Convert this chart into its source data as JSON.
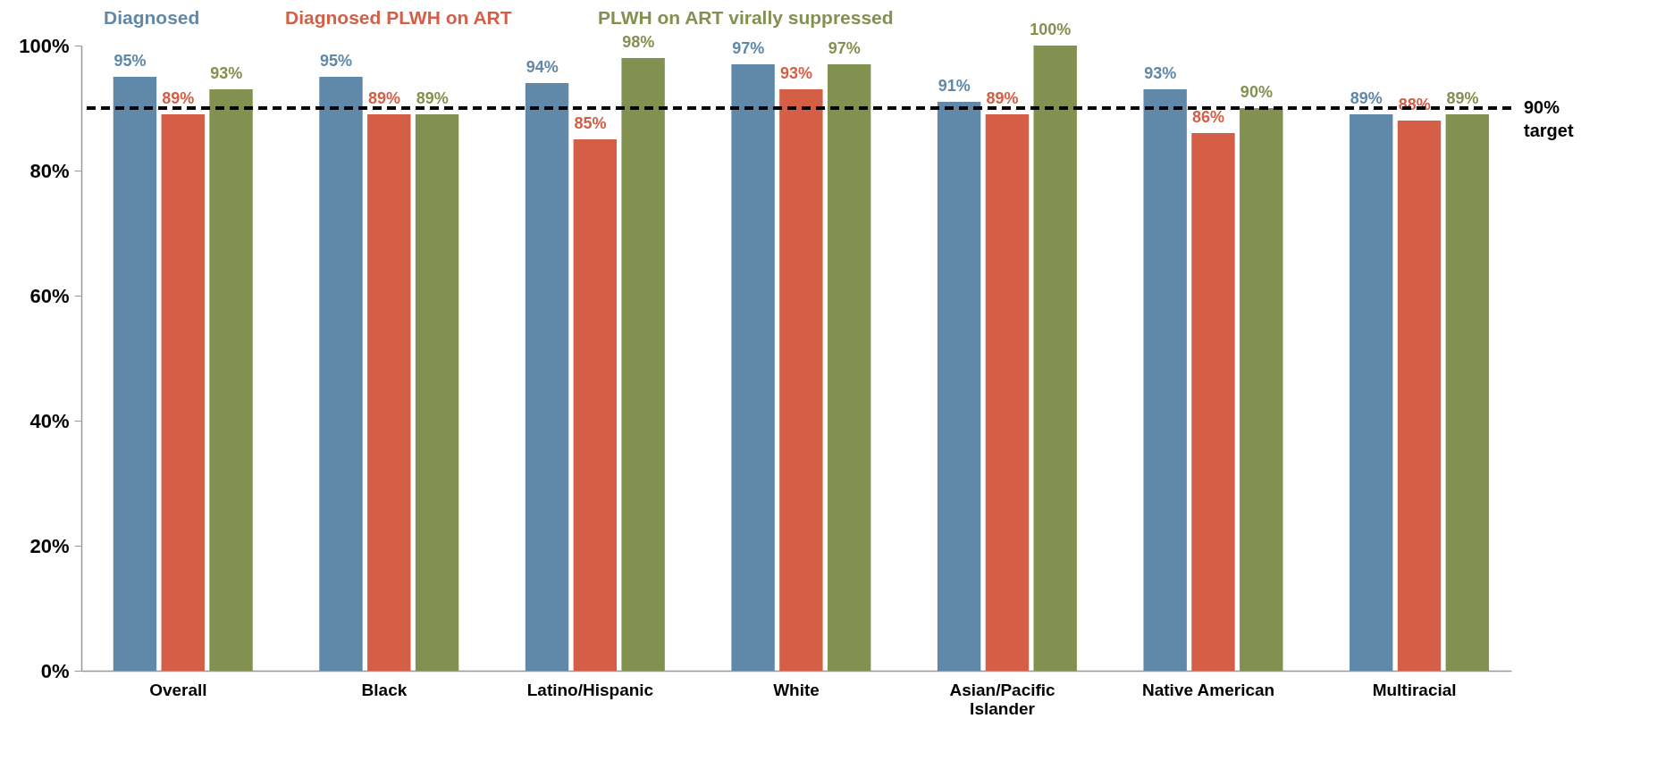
{
  "chart_data": {
    "type": "bar",
    "categories": [
      "Overall",
      "Black",
      "Latino/Hispanic",
      "White",
      "Asian/Pacific Islander",
      "Native American",
      "Multiracial"
    ],
    "series": [
      {
        "name": "Diagnosed",
        "color": "#6088a8",
        "values": [
          95,
          95,
          94,
          97,
          91,
          93,
          89
        ]
      },
      {
        "name": "Diagnosed PLWH on ART",
        "color": "#d45e46",
        "values": [
          89,
          89,
          85,
          93,
          89,
          86,
          88
        ]
      },
      {
        "name": "PLWH on ART virally suppressed",
        "color": "#82914f",
        "values": [
          93,
          89,
          98,
          97,
          100,
          90,
          89
        ]
      }
    ],
    "ylim": [
      0,
      100
    ],
    "yticks": [
      {
        "value": 0,
        "label": "0%"
      },
      {
        "value": 20,
        "label": "20%"
      },
      {
        "value": 40,
        "label": "40%"
      },
      {
        "value": 60,
        "label": "60%"
      },
      {
        "value": 80,
        "label": "80%"
      },
      {
        "value": 100,
        "label": "100%"
      }
    ],
    "value_labels": [
      [
        "95%",
        "95%",
        "94%",
        "97%",
        "91%",
        "93%",
        "89%"
      ],
      [
        "89%",
        "89%",
        "85%",
        "93%",
        "89%",
        "86%",
        "88%"
      ],
      [
        "93%",
        "89%",
        "98%",
        "97%",
        "100%",
        "90%",
        "89%"
      ]
    ],
    "ref_lines": [
      {
        "axis": "y",
        "value": 90,
        "label": "90% target",
        "color": "#000000",
        "line_style": "dashed"
      }
    ],
    "grid": false,
    "legend": "top"
  }
}
